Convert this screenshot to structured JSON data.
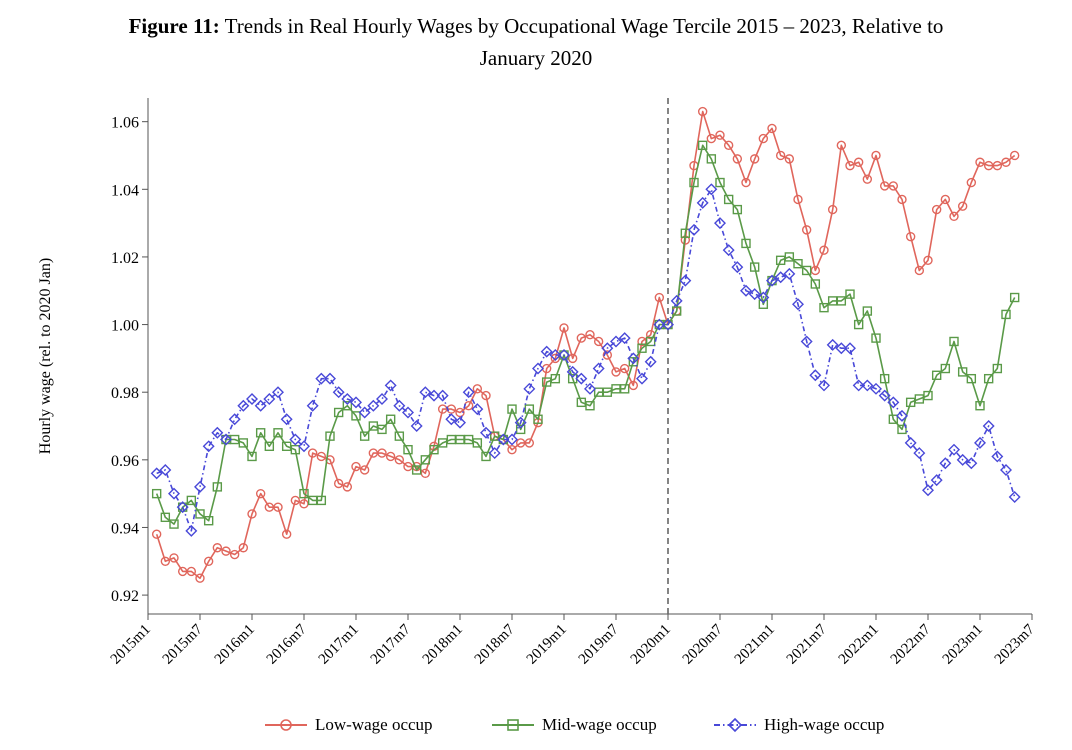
{
  "title": {
    "figure_label": "Figure 11:",
    "line1": "Trends in Real Hourly Wages by Occupational Wage Tercile 2015 – 2023, Relative to",
    "line2": "January 2020"
  },
  "colors": {
    "low": "#e0665c",
    "mid": "#5a9a48",
    "high": "#4848d8",
    "vline": "#666666",
    "axis": "#555555"
  },
  "chart_data": {
    "type": "line",
    "title": "Trends in Real Hourly Wages by Occupational Wage Tercile 2015 – 2023, Relative to January 2020",
    "xlabel": "",
    "ylabel": "Hourly wage (rel. to 2020 Jan)",
    "ylim": [
      0.915,
      1.067
    ],
    "yticks": [
      0.92,
      0.94,
      0.96,
      0.98,
      1.0,
      1.02,
      1.04,
      1.06
    ],
    "ytick_labels": [
      "0.92",
      "0.94",
      "0.96",
      "0.98",
      "1.00",
      "1.02",
      "1.04",
      "1.06"
    ],
    "x_start": "2015m1",
    "x_end": "2023m7",
    "xticks": [
      "2015m1",
      "2015m7",
      "2016m1",
      "2016m7",
      "2017m1",
      "2017m7",
      "2018m1",
      "2018m7",
      "2019m1",
      "2019m7",
      "2020m1",
      "2020m7",
      "2021m1",
      "2021m7",
      "2022m1",
      "2022m7",
      "2023m1",
      "2023m7"
    ],
    "first_obs": "2015m2",
    "vline": "2020m1",
    "grid": false,
    "legend_position": "bottom",
    "series": [
      {
        "name": "Low-wage occup",
        "color": "#e0665c",
        "marker": "circle",
        "linestyle": "solid",
        "values": [
          0.938,
          0.93,
          0.931,
          0.927,
          0.927,
          0.925,
          0.93,
          0.934,
          0.933,
          0.932,
          0.934,
          0.944,
          0.95,
          0.946,
          0.946,
          0.938,
          0.948,
          0.947,
          0.962,
          0.961,
          0.96,
          0.953,
          0.952,
          0.958,
          0.957,
          0.962,
          0.962,
          0.961,
          0.96,
          0.958,
          0.958,
          0.956,
          0.964,
          0.975,
          0.975,
          0.974,
          0.976,
          0.981,
          0.979,
          0.967,
          0.966,
          0.963,
          0.965,
          0.965,
          0.971,
          0.987,
          0.99,
          0.999,
          0.99,
          0.996,
          0.997,
          0.995,
          0.991,
          0.986,
          0.987,
          0.982,
          0.995,
          0.997,
          1.008,
          1.0,
          1.004,
          1.025,
          1.047,
          1.063,
          1.055,
          1.056,
          1.053,
          1.049,
          1.042,
          1.049,
          1.055,
          1.058,
          1.05,
          1.049,
          1.037,
          1.028,
          1.016,
          1.022,
          1.034,
          1.053,
          1.047,
          1.048,
          1.043,
          1.05,
          1.041,
          1.041,
          1.037,
          1.026,
          1.016,
          1.019,
          1.034,
          1.037,
          1.032,
          1.035,
          1.042,
          1.048,
          1.047,
          1.047,
          1.048,
          1.05
        ]
      },
      {
        "name": "Mid-wage occup",
        "color": "#5a9a48",
        "marker": "square",
        "linestyle": "solid",
        "values": [
          0.95,
          0.943,
          0.941,
          0.946,
          0.948,
          0.944,
          0.942,
          0.952,
          0.966,
          0.966,
          0.965,
          0.961,
          0.968,
          0.964,
          0.968,
          0.964,
          0.963,
          0.95,
          0.948,
          0.948,
          0.967,
          0.974,
          0.976,
          0.973,
          0.967,
          0.97,
          0.969,
          0.972,
          0.967,
          0.963,
          0.957,
          0.96,
          0.963,
          0.965,
          0.966,
          0.966,
          0.966,
          0.965,
          0.961,
          0.967,
          0.966,
          0.975,
          0.969,
          0.975,
          0.972,
          0.983,
          0.984,
          0.991,
          0.984,
          0.977,
          0.976,
          0.98,
          0.98,
          0.981,
          0.981,
          0.989,
          0.993,
          0.995,
          1.0,
          1.0,
          1.004,
          1.027,
          1.042,
          1.053,
          1.049,
          1.042,
          1.037,
          1.034,
          1.024,
          1.017,
          1.006,
          1.013,
          1.019,
          1.02,
          1.018,
          1.016,
          1.012,
          1.005,
          1.007,
          1.007,
          1.009,
          1.0,
          1.004,
          0.996,
          0.984,
          0.972,
          0.969,
          0.977,
          0.978,
          0.979,
          0.985,
          0.987,
          0.995,
          0.986,
          0.984,
          0.976,
          0.984,
          0.987,
          1.003,
          1.008
        ]
      },
      {
        "name": "High-wage occup",
        "color": "#4848d8",
        "marker": "diamond",
        "linestyle": "dash-dot",
        "values": [
          0.956,
          0.957,
          0.95,
          0.946,
          0.939,
          0.952,
          0.964,
          0.968,
          0.966,
          0.972,
          0.976,
          0.978,
          0.976,
          0.978,
          0.98,
          0.972,
          0.966,
          0.964,
          0.976,
          0.984,
          0.984,
          0.98,
          0.978,
          0.977,
          0.974,
          0.976,
          0.978,
          0.982,
          0.976,
          0.974,
          0.97,
          0.98,
          0.979,
          0.979,
          0.972,
          0.971,
          0.98,
          0.975,
          0.968,
          0.962,
          0.966,
          0.966,
          0.971,
          0.981,
          0.987,
          0.992,
          0.991,
          0.991,
          0.986,
          0.984,
          0.981,
          0.987,
          0.993,
          0.995,
          0.996,
          0.99,
          0.984,
          0.989,
          1.0,
          1.0,
          1.007,
          1.013,
          1.028,
          1.036,
          1.04,
          1.03,
          1.022,
          1.017,
          1.01,
          1.009,
          1.008,
          1.013,
          1.014,
          1.015,
          1.006,
          0.995,
          0.985,
          0.982,
          0.994,
          0.993,
          0.993,
          0.982,
          0.982,
          0.981,
          0.979,
          0.977,
          0.973,
          0.965,
          0.962,
          0.951,
          0.954,
          0.959,
          0.963,
          0.96,
          0.959,
          0.965,
          0.97,
          0.961,
          0.957,
          0.949
        ]
      }
    ]
  }
}
